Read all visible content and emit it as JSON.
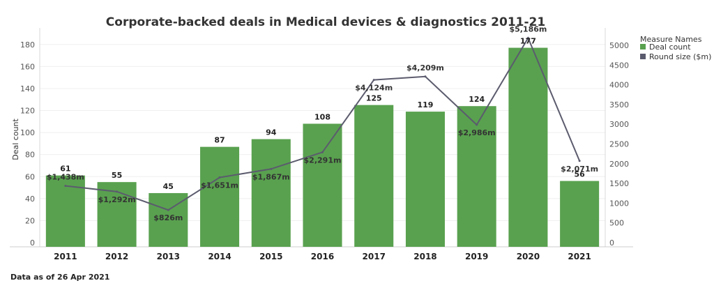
{
  "chart_data": {
    "type": "bar",
    "title": "Corporate-backed deals in Medical devices & diagnostics 2011-21",
    "categories": [
      "2011",
      "2012",
      "2013",
      "2014",
      "2015",
      "2016",
      "2017",
      "2018",
      "2019",
      "2020",
      "2021"
    ],
    "ylabel": "Deal count",
    "ylim": [
      0,
      190
    ],
    "y_ticks": [
      "0",
      "20",
      "40",
      "60",
      "80",
      "100",
      "120",
      "140",
      "160",
      "180"
    ],
    "y2lim": [
      0,
      5300
    ],
    "y2_ticks": [
      "0",
      "500",
      "1000",
      "1500",
      "2000",
      "2500",
      "3000",
      "3500",
      "4000",
      "4500",
      "5000"
    ],
    "series": [
      {
        "name": "Deal count",
        "type": "bar",
        "color": "#59a14f",
        "axis": "left",
        "values": [
          61,
          55,
          45,
          87,
          94,
          108,
          125,
          119,
          124,
          177,
          56
        ],
        "labels": [
          "61",
          "55",
          "45",
          "87",
          "94",
          "108",
          "125",
          "119",
          "124",
          "177",
          "56"
        ]
      },
      {
        "name": "Round size ($m)",
        "type": "line",
        "color": "#5b5b6e",
        "axis": "right",
        "values": [
          1438,
          1292,
          826,
          1651,
          1867,
          2291,
          4124,
          4209,
          2986,
          5186,
          2071
        ],
        "labels": [
          "$1,438m",
          "$1,292m",
          "$826m",
          "$1,651m",
          "$1,867m",
          "$2,291m",
          "$4,124m",
          "$4,209m",
          "$2,986m",
          "$5,186m",
          "$2,071m"
        ]
      }
    ],
    "legend": {
      "title": "Measure Names",
      "position": "right",
      "items": [
        "Deal count",
        "Round size ($m)"
      ]
    },
    "grid": true
  },
  "footnote": "Data as of 26 Apr 2021"
}
